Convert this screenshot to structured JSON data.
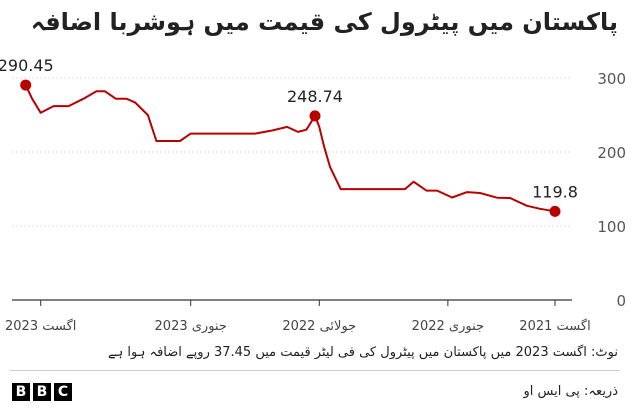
{
  "title": "پاکستان میں پیٹرول کی قیمت میں ہوشربا اضافہ",
  "note": "نوٹ: اگست 2023 میں پاکستان میں پیٹرول کی فی لیٹر قیمت میں 37.45 روپے اضافہ ہوا ہے",
  "source": "ذریعہ: پی ایس او",
  "logo": [
    "B",
    "B",
    "C"
  ],
  "chart_data": {
    "type": "line",
    "x_direction": "right-to-left",
    "ylim": [
      0,
      300
    ],
    "y_ticks": [
      0,
      100,
      200,
      300
    ],
    "x_ticks": [
      {
        "label": "اگست 2021",
        "x": 0
      },
      {
        "label": "جنوری 2022",
        "x": 5
      },
      {
        "label": "جولائی 2022",
        "x": 11
      },
      {
        "label": "جنوری 2023",
        "x": 17
      },
      {
        "label": "اگست 2023",
        "x": 24
      }
    ],
    "x_domain": [
      0,
      25.2
    ],
    "series": [
      {
        "color": "#b80000",
        "points": [
          [
            0,
            119.8
          ],
          [
            0.7,
            123.3
          ],
          [
            1.3,
            127.3
          ],
          [
            2.1,
            137.8
          ],
          [
            2.7,
            138.3
          ],
          [
            3.5,
            144.6
          ],
          [
            4.1,
            145.8
          ],
          [
            4.8,
            138.5
          ],
          [
            5.5,
            147.9
          ],
          [
            6.0,
            147.8
          ],
          [
            6.6,
            159.9
          ],
          [
            7.0,
            149.9
          ],
          [
            8.0,
            149.9
          ],
          [
            9.0,
            149.9
          ],
          [
            10.0,
            149.9
          ],
          [
            10.5,
            179.9
          ],
          [
            10.8,
            209.9
          ],
          [
            11.0,
            233.9
          ],
          [
            11.2,
            248.74
          ],
          [
            11.6,
            230.2
          ],
          [
            12.0,
            227.2
          ],
          [
            12.5,
            233.9
          ],
          [
            13.2,
            229.1
          ],
          [
            14.0,
            224.8
          ],
          [
            15.0,
            224.8
          ],
          [
            16.0,
            224.8
          ],
          [
            17.0,
            224.8
          ],
          [
            17.5,
            214.8
          ],
          [
            18.6,
            214.8
          ],
          [
            19.0,
            249.8
          ],
          [
            19.6,
            267.0
          ],
          [
            20.0,
            272.0
          ],
          [
            20.5,
            272.0
          ],
          [
            21.0,
            282.0
          ],
          [
            21.4,
            282.0
          ],
          [
            22.0,
            272.0
          ],
          [
            22.7,
            262.0
          ],
          [
            23.4,
            262.0
          ],
          [
            24.0,
            253.0
          ],
          [
            24.4,
            272.0
          ],
          [
            24.7,
            290.45
          ]
        ],
        "markers": [
          {
            "x": 0,
            "value": 119.8,
            "label": "119.8"
          },
          {
            "x": 11.2,
            "value": 248.74,
            "label": "248.74"
          },
          {
            "x": 24.7,
            "value": 290.45,
            "label": "290.45"
          }
        ]
      }
    ]
  }
}
